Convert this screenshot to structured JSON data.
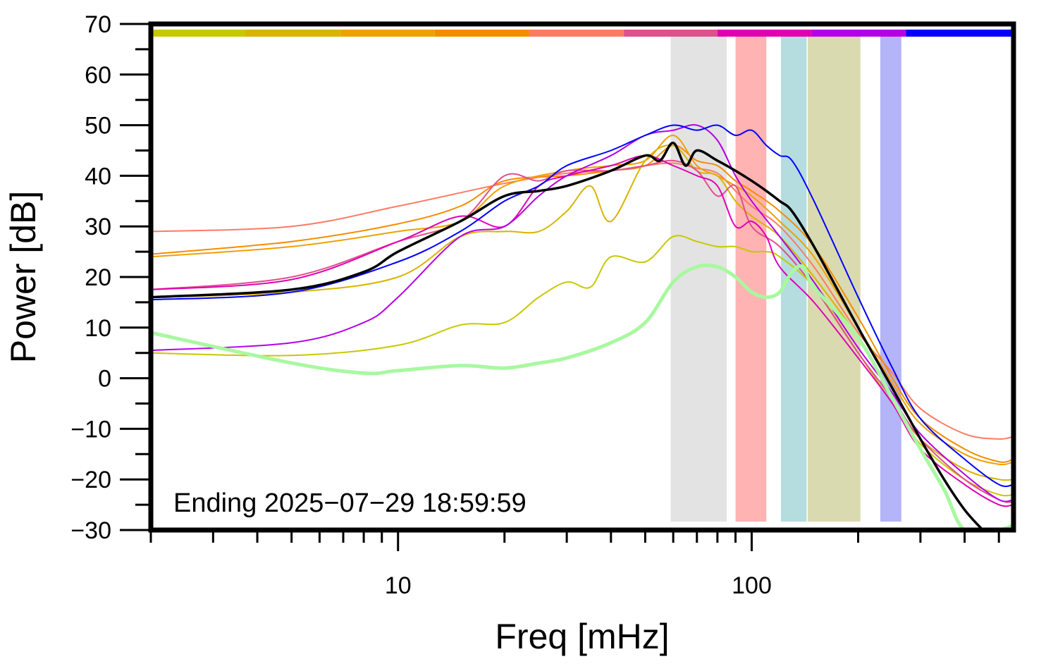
{
  "chart_data": {
    "type": "line",
    "xlabel": "Freq [mHz]",
    "ylabel": "Power [dB]",
    "x_scale": "log",
    "xlim": [
      2,
      550
    ],
    "ylim": [
      -30,
      70
    ],
    "x_tick_labels": [
      "10",
      "100"
    ],
    "x_major_ticks": [
      10,
      100
    ],
    "x_minor_ticks": [
      2,
      3,
      4,
      5,
      6,
      7,
      8,
      9,
      20,
      30,
      40,
      50,
      60,
      70,
      80,
      90,
      200,
      300,
      400,
      500
    ],
    "y_ticks": [
      70,
      60,
      50,
      40,
      30,
      20,
      10,
      0,
      -10,
      -20,
      -30
    ],
    "y_tick_labels": [
      "70",
      "60",
      "50",
      "40",
      "30",
      "20",
      "10",
      "0",
      "−10",
      "−20",
      "−30"
    ],
    "grid": false,
    "annotation": "Ending 2025−07−29 18:59:59",
    "time_color_bar": [
      {
        "x_start": 2.0,
        "x_end": 3.7,
        "color": "#c8c800"
      },
      {
        "x_start": 3.7,
        "x_end": 6.9,
        "color": "#d8b400"
      },
      {
        "x_start": 6.9,
        "x_end": 12.7,
        "color": "#f0a000"
      },
      {
        "x_start": 12.7,
        "x_end": 23.5,
        "color": "#f58c00"
      },
      {
        "x_start": 23.5,
        "x_end": 43.5,
        "color": "#ff7a64"
      },
      {
        "x_start": 43.5,
        "x_end": 80.0,
        "color": "#e0508c"
      },
      {
        "x_start": 80.0,
        "x_end": 148.0,
        "color": "#e000b4"
      },
      {
        "x_start": 148.0,
        "x_end": 273.0,
        "color": "#b400e6"
      },
      {
        "x_start": 273.0,
        "x_end": 550.0,
        "color": "#0000ff"
      }
    ],
    "bands": [
      {
        "x_start": 59,
        "x_end": 85,
        "color": "#e3e3e3"
      },
      {
        "x_start": 90,
        "x_end": 110,
        "color": "#ffb3b3"
      },
      {
        "x_start": 121,
        "x_end": 143,
        "color": "#b5dcdf"
      },
      {
        "x_start": 144,
        "x_end": 203,
        "color": "#dadab0"
      },
      {
        "x_start": 231,
        "x_end": 265,
        "color": "#b4b4f8"
      }
    ],
    "series": [
      {
        "color": "#ff7a64",
        "width": 2,
        "x": [
          2,
          5,
          10,
          20,
          30,
          40,
          50,
          60,
          70,
          80,
          90,
          100,
          120,
          150,
          200,
          250,
          300,
          400,
          500,
          550
        ],
        "values": [
          29,
          30,
          34,
          38.5,
          40.5,
          41,
          42,
          42.5,
          41.5,
          40.5,
          37,
          34,
          30,
          22,
          9,
          1,
          -6,
          -11,
          -12,
          -11.5
        ]
      },
      {
        "color": "#f58c00",
        "width": 2,
        "x": [
          2,
          5,
          10,
          15,
          20,
          30,
          40,
          50,
          60,
          70,
          80,
          90,
          100,
          120,
          150,
          200,
          250,
          300,
          400,
          500,
          550
        ],
        "values": [
          24.5,
          27,
          30.5,
          34,
          39,
          40,
          41,
          42,
          46,
          43,
          42,
          39,
          37,
          33,
          26,
          12,
          0,
          -8,
          -14,
          -16.5,
          -16
        ]
      },
      {
        "color": "#f0a000",
        "width": 2,
        "x": [
          2,
          5,
          10,
          15,
          20,
          30,
          40,
          50,
          60,
          70,
          80,
          90,
          100,
          120,
          150,
          200,
          250,
          300,
          400,
          500,
          550
        ],
        "values": [
          24,
          26,
          29,
          31,
          38,
          41,
          42,
          43,
          48,
          42,
          40,
          38,
          36,
          31,
          24,
          10,
          -1,
          -9,
          -15,
          -17,
          -16.5
        ]
      },
      {
        "color": "#d8b400",
        "width": 2,
        "x": [
          2,
          5,
          10,
          15,
          20,
          25,
          30,
          35,
          40,
          50,
          60,
          70,
          80,
          90,
          100,
          120,
          150,
          200,
          250,
          300,
          400,
          500,
          550
        ],
        "values": [
          16,
          17,
          20,
          28,
          29,
          29,
          33,
          38,
          31,
          43,
          46,
          41,
          40,
          35,
          32,
          28,
          20,
          8,
          -4,
          -12,
          -18,
          -20,
          -20
        ]
      },
      {
        "color": "#c8c800",
        "width": 2,
        "x": [
          2,
          5,
          10,
          15,
          20,
          25,
          30,
          35,
          40,
          50,
          60,
          70,
          80,
          90,
          100,
          110,
          120,
          150,
          200,
          250,
          300,
          400,
          500,
          550
        ],
        "values": [
          5,
          4.5,
          6.5,
          10.5,
          11,
          16,
          19,
          18,
          24,
          23,
          28,
          27,
          26,
          26,
          25,
          25,
          24,
          18,
          5,
          -5,
          -13,
          -20,
          -23,
          -23
        ]
      },
      {
        "color": "#e0508c",
        "width": 2,
        "x": [
          2,
          5,
          10,
          15,
          20,
          25,
          30,
          40,
          50,
          60,
          70,
          80,
          90,
          100,
          120,
          150,
          200,
          250,
          300,
          400,
          500,
          550
        ],
        "values": [
          17.5,
          20,
          27,
          31,
          40,
          39,
          41,
          41,
          42,
          43,
          41,
          36,
          38,
          30,
          26,
          18,
          5,
          -4,
          -12,
          -20,
          -24,
          -24.5
        ]
      },
      {
        "color": "#e000b4",
        "width": 2,
        "x": [
          2,
          5,
          10,
          15,
          20,
          25,
          30,
          40,
          50,
          60,
          70,
          80,
          90,
          100,
          110,
          120,
          150,
          200,
          250,
          300,
          400,
          500,
          550
        ],
        "values": [
          17.5,
          19.5,
          27,
          32,
          30,
          38,
          40,
          42,
          44,
          42,
          40,
          38,
          30,
          31,
          28,
          22,
          15,
          4,
          -5,
          -14,
          -21,
          -25,
          -25
        ]
      },
      {
        "color": "#b400e6",
        "width": 2,
        "x": [
          2,
          5,
          8,
          10,
          15,
          20,
          25,
          30,
          40,
          50,
          60,
          70,
          80,
          90,
          100,
          120,
          150,
          200,
          250,
          300,
          400,
          500,
          550
        ],
        "values": [
          5.5,
          7,
          11,
          16,
          28,
          30,
          36,
          40,
          44,
          48,
          49,
          50,
          47,
          40,
          35,
          28,
          19,
          6,
          -3,
          -11,
          -19,
          -24,
          -24
        ]
      },
      {
        "color": "#0000ff",
        "width": 2,
        "x": [
          2,
          5,
          10,
          15,
          20,
          25,
          30,
          40,
          50,
          60,
          70,
          80,
          90,
          100,
          110,
          120,
          130,
          150,
          200,
          250,
          300,
          400,
          500,
          550
        ],
        "values": [
          15.5,
          17,
          23,
          29,
          35,
          38,
          42,
          45,
          48,
          50,
          49,
          50,
          48,
          49,
          46,
          44,
          43,
          35,
          16,
          2,
          -8,
          -16,
          -21,
          -21
        ]
      },
      {
        "color": "#a8f8a0",
        "width": 5,
        "x": [
          2,
          5,
          8,
          10,
          15,
          20,
          25,
          30,
          40,
          50,
          60,
          70,
          80,
          90,
          100,
          110,
          120,
          130,
          140,
          150,
          200,
          250,
          300,
          350,
          400,
          500,
          550
        ],
        "values": [
          9,
          3,
          1,
          1.5,
          2.5,
          2,
          3,
          4,
          7,
          11,
          19,
          22,
          22,
          20,
          17,
          16,
          17,
          21,
          22,
          18,
          8,
          -4,
          -14,
          -22,
          -30,
          -30,
          -29
        ]
      },
      {
        "color": "#000000",
        "width": 3.5,
        "x": [
          2,
          5,
          8,
          10,
          15,
          20,
          25,
          30,
          40,
          50,
          55,
          60,
          65,
          70,
          80,
          90,
          100,
          110,
          120,
          130,
          150,
          200,
          250,
          300,
          350,
          400,
          450
        ],
        "values": [
          16,
          17.5,
          21,
          25,
          31,
          36,
          37,
          38,
          41,
          44,
          43,
          46.5,
          42,
          45,
          43,
          41,
          39,
          37,
          35,
          33,
          26,
          10,
          -2,
          -12,
          -20,
          -26,
          -31
        ]
      }
    ]
  }
}
